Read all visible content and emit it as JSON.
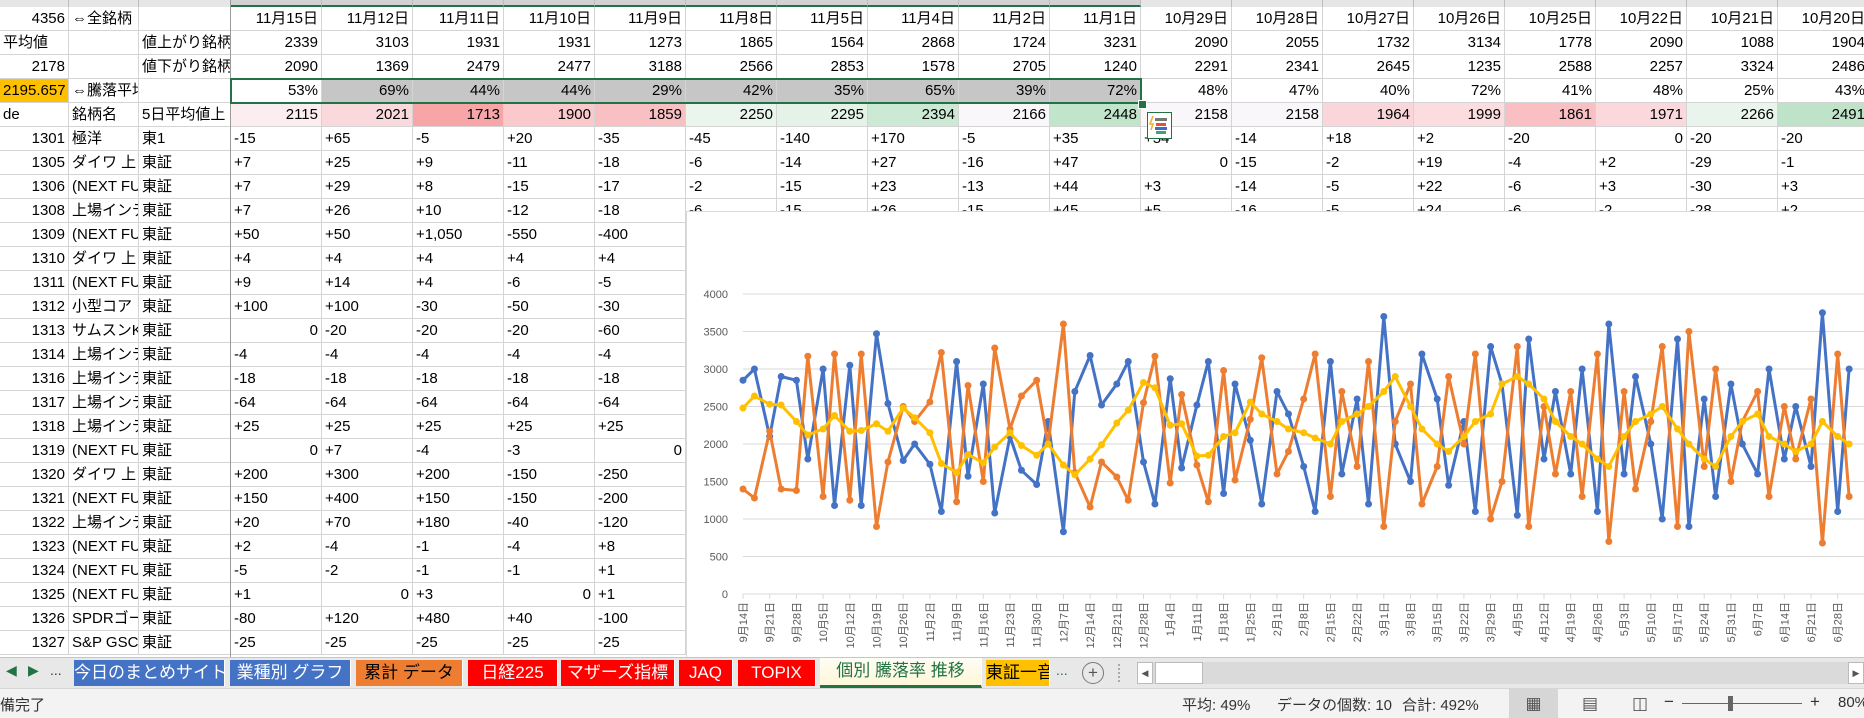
{
  "sheet": {
    "header_rows": [
      {
        "a": "4356",
        "b": "⇔全銘柄",
        "c": "",
        "values": [
          "11月15日",
          "11月12日",
          "11月11日",
          "11月10日",
          "11月9日",
          "11月8日",
          "11月5日",
          "11月4日",
          "11月2日",
          "11月1日",
          "10月29日",
          "10月28日",
          "10月27日",
          "10月26日",
          "10月25日",
          "10月22日",
          "10月21日",
          "10月20日"
        ]
      },
      {
        "a": "平均値",
        "b": "",
        "c": "値上がり銘柄",
        "values": [
          "2339",
          "3103",
          "1931",
          "1931",
          "1273",
          "1865",
          "1564",
          "2868",
          "1724",
          "3231",
          "2090",
          "2055",
          "1732",
          "3134",
          "1778",
          "2090",
          "1088",
          "1904"
        ]
      },
      {
        "a": "2178",
        "b": "",
        "c": "値下がり銘柄",
        "values": [
          "2090",
          "1369",
          "2479",
          "2477",
          "3188",
          "2566",
          "2853",
          "1578",
          "2705",
          "1240",
          "2291",
          "2341",
          "2645",
          "1235",
          "2588",
          "2257",
          "3324",
          "2486"
        ]
      },
      {
        "a": "2195.657",
        "b": "⇔騰落平均",
        "c": "",
        "values": [
          "53%",
          "69%",
          "44%",
          "44%",
          "29%",
          "42%",
          "35%",
          "65%",
          "39%",
          "72%",
          "48%",
          "47%",
          "40%",
          "72%",
          "41%",
          "48%",
          "25%",
          "43%"
        ]
      },
      {
        "a": "de",
        "b": "銘柄名",
        "c": "5日平均値上",
        "values": [
          "2115",
          "2021",
          "1713",
          "1900",
          "1859",
          "2250",
          "2295",
          "2394",
          "2166",
          "2448",
          "2158",
          "2158",
          "1964",
          "1999",
          "1861",
          "1971",
          "2266",
          "2491"
        ]
      }
    ],
    "avg5_colors": [
      "#fcedf0",
      "#fad9dd",
      "#f8a5a8",
      "#fbc8cb",
      "#f9c0c3",
      "#eaf5ee",
      "#e4f2e8",
      "#cbe9d4",
      "#f9f7fa",
      "#c1e5ca",
      "#faf7fa",
      "#faf7fa",
      "#fad6da",
      "#fbdde0",
      "#f9bfc3",
      "#fad8dc",
      "#e9f4ec",
      "#bfe3c8"
    ],
    "highlight_color": "#ffc000",
    "selected_fill": "#c6c6c6",
    "selection_color": "#217346",
    "data_rows": [
      {
        "code": "1301",
        "name": "極洋",
        "market": "東1",
        "values": [
          "-15",
          "+65",
          "-5",
          "+20",
          "-35",
          "-45",
          "-140",
          "+170",
          "-5",
          "+35",
          "+54",
          "-14",
          "+18",
          "+2",
          "-20",
          "0",
          "-20",
          "-20"
        ]
      },
      {
        "code": "1305",
        "name": "ダイワ 上",
        "market": "東証",
        "values": [
          "+7",
          "+25",
          "+9",
          "-11",
          "-18",
          "-6",
          "-14",
          "+27",
          "-16",
          "+47",
          "0",
          "-15",
          "-2",
          "+19",
          "-4",
          "+2",
          "-29",
          "-1"
        ]
      },
      {
        "code": "1306",
        "name": "(NEXT FU",
        "market": "東証",
        "values": [
          "+7",
          "+29",
          "+8",
          "-15",
          "-17",
          "-2",
          "-15",
          "+23",
          "-13",
          "+44",
          "+3",
          "-14",
          "-5",
          "+22",
          "-6",
          "+3",
          "-30",
          "+3"
        ]
      },
      {
        "code": "1308",
        "name": "上場インデ",
        "market": "東証",
        "values": [
          "+7",
          "+26",
          "+10",
          "-12",
          "-18",
          "-6",
          "-15",
          "+26",
          "-15",
          "+45",
          "+5",
          "-16",
          "-5",
          "+24",
          "-6",
          "-2",
          "-28",
          "+2"
        ]
      },
      {
        "code": "1309",
        "name": "(NEXT FU",
        "market": "東証",
        "values": [
          "+50",
          "+50",
          "+1,050",
          "-550",
          "-400"
        ]
      },
      {
        "code": "1310",
        "name": "ダイワ 上",
        "market": "東証",
        "values": [
          "+4",
          "+4",
          "+4",
          "+4",
          "+4"
        ]
      },
      {
        "code": "1311",
        "name": "(NEXT FU",
        "market": "東証",
        "values": [
          "+9",
          "+14",
          "+4",
          "-6",
          "-5"
        ]
      },
      {
        "code": "1312",
        "name": "小型コア・",
        "market": "東証",
        "values": [
          "+100",
          "+100",
          "-30",
          "-50",
          "-30"
        ]
      },
      {
        "code": "1313",
        "name": "サムスンK",
        "market": "東証",
        "values": [
          "0",
          "-20",
          "-20",
          "-20",
          "-60"
        ]
      },
      {
        "code": "1314",
        "name": "上場インデ",
        "market": "東証",
        "values": [
          "-4",
          "-4",
          "-4",
          "-4",
          "-4"
        ]
      },
      {
        "code": "1316",
        "name": "上場インデ",
        "market": "東証",
        "values": [
          "-18",
          "-18",
          "-18",
          "-18",
          "-18"
        ]
      },
      {
        "code": "1317",
        "name": "上場インデ",
        "market": "東証",
        "values": [
          "-64",
          "-64",
          "-64",
          "-64",
          "-64"
        ]
      },
      {
        "code": "1318",
        "name": "上場インデ",
        "market": "東証",
        "values": [
          "+25",
          "+25",
          "+25",
          "+25",
          "+25"
        ]
      },
      {
        "code": "1319",
        "name": "(NEXT FU",
        "market": "東証",
        "values": [
          "0",
          "+7",
          "-4",
          "-3",
          "0"
        ]
      },
      {
        "code": "1320",
        "name": "ダイワ 上",
        "market": "東証",
        "values": [
          "+200",
          "+300",
          "+200",
          "-150",
          "-250"
        ]
      },
      {
        "code": "1321",
        "name": "(NEXT FU",
        "market": "東証",
        "values": [
          "+150",
          "+400",
          "+150",
          "-150",
          "-200"
        ]
      },
      {
        "code": "1322",
        "name": "上場インデ",
        "market": "東証",
        "values": [
          "+20",
          "+70",
          "+180",
          "-40",
          "-120"
        ]
      },
      {
        "code": "1323",
        "name": "(NEXT FU",
        "market": "東証",
        "values": [
          "+2",
          "-4",
          "-1",
          "-4",
          "+8"
        ]
      },
      {
        "code": "1324",
        "name": "(NEXT FU",
        "market": "東証",
        "values": [
          "-5",
          "-2",
          "-1",
          "-1",
          "+1"
        ]
      },
      {
        "code": "1325",
        "name": "(NEXT FU",
        "market": "東証",
        "values": [
          "+1",
          "0",
          "+3",
          "0",
          "+1"
        ]
      },
      {
        "code": "1326",
        "name": "SPDRゴー",
        "market": "東証",
        "values": [
          "-80",
          "+120",
          "+480",
          "+40",
          "-100"
        ]
      },
      {
        "code": "1327",
        "name": "S&P GSCI",
        "market": "東証",
        "values": [
          "-25",
          "-25",
          "-25",
          "-25",
          "-25"
        ]
      }
    ]
  },
  "chart_data": {
    "type": "line",
    "title": "",
    "xlabel": "",
    "ylabel": "",
    "ylim": [
      0,
      4000
    ],
    "yticks": [
      "0",
      "500",
      "1000",
      "1500",
      "2000",
      "2500",
      "3000",
      "3500",
      "4000"
    ],
    "grid": true,
    "legend": "none",
    "xtick_labels": [
      "9月14日",
      "9月21日",
      "9月28日",
      "10月5日",
      "10月12日",
      "10月19日",
      "10月26日",
      "11月2日",
      "11月9日",
      "11月16日",
      "11月23日",
      "11月30日",
      "12月7日",
      "12月14日",
      "12月21日",
      "12月28日",
      "1月4日",
      "1月11日",
      "1月18日",
      "1月25日",
      "2月1日",
      "2月8日",
      "2月15日",
      "2月22日",
      "3月1日",
      "3月8日",
      "3月15日",
      "3月22日",
      "3月29日",
      "4月5日",
      "4月12日",
      "4月19日",
      "4月26日",
      "5月3日",
      "5月10日",
      "5月17日",
      "5月24日",
      "5月31日",
      "6月7日",
      "6月14日",
      "6月21日",
      "6月28日"
    ],
    "x": [
      "09-14",
      "09-17",
      "09-21",
      "09-24",
      "09-28",
      "10-01",
      "10-05",
      "10-08",
      "10-12",
      "10-15",
      "10-19",
      "10-22",
      "10-26",
      "10-29",
      "11-02",
      "11-05",
      "11-09",
      "11-12",
      "11-16",
      "11-19",
      "11-23",
      "11-26",
      "11-30",
      "12-03",
      "12-07",
      "12-10",
      "12-14",
      "12-17",
      "12-21",
      "12-24",
      "12-28",
      "12-31",
      "01-04",
      "01-07",
      "01-11",
      "01-14",
      "01-18",
      "01-21",
      "01-25",
      "01-28",
      "02-01",
      "02-04",
      "02-08",
      "02-11",
      "02-15",
      "02-18",
      "02-22",
      "02-25",
      "03-01",
      "03-04",
      "03-08",
      "03-11",
      "03-15",
      "03-18",
      "03-22",
      "03-25",
      "03-29",
      "04-01",
      "04-05",
      "04-08",
      "04-12",
      "04-15",
      "04-19",
      "04-22",
      "04-26",
      "04-29",
      "05-03",
      "05-06",
      "05-10",
      "05-13",
      "05-17",
      "05-20",
      "05-24",
      "05-27",
      "05-31",
      "06-03",
      "06-07",
      "06-10",
      "06-14",
      "06-17",
      "06-21",
      "06-24",
      "06-28",
      "07-01"
    ],
    "series": [
      {
        "color": "#4472c4",
        "values": [
          2850,
          3000,
          2100,
          2900,
          2850,
          1800,
          3000,
          1180,
          3050,
          1180,
          3470,
          2540,
          1780,
          2000,
          1730,
          1100,
          3100,
          1570,
          2800,
          1080,
          2100,
          1650,
          1460,
          2300,
          830,
          2700,
          3180,
          2520,
          2800,
          3100,
          1760,
          1200,
          2870,
          1680,
          2520,
          3100,
          1340,
          2800,
          2050,
          1200,
          2700,
          2400,
          1700,
          1100,
          3100,
          1600,
          2600,
          1200,
          3700,
          2000,
          1500,
          3200,
          2600,
          1450,
          2300,
          1100,
          3300,
          2800,
          1050,
          3400,
          1800,
          2700,
          1600,
          3000,
          1100,
          3600,
          1600,
          2900,
          2000,
          1000,
          3400,
          900,
          2600,
          1300,
          2800,
          2000,
          1600,
          3000,
          1800,
          2500,
          1700,
          3750,
          1100,
          3000
        ]
      },
      {
        "color": "#ed7d31",
        "values": [
          1400,
          1280,
          2170,
          1400,
          1380,
          3170,
          1300,
          3200,
          1250,
          3200,
          900,
          1760,
          2500,
          2300,
          2560,
          3220,
          1230,
          2780,
          1500,
          3280,
          2200,
          2640,
          2850,
          2000,
          3600,
          1620,
          1160,
          1760,
          1560,
          1250,
          2550,
          3170,
          1480,
          2660,
          1720,
          1230,
          2980,
          1520,
          2330,
          3150,
          1600,
          1900,
          2600,
          3200,
          1300,
          2700,
          1700,
          3100,
          900,
          2300,
          2800,
          1200,
          1700,
          2900,
          2000,
          3200,
          1000,
          1500,
          3300,
          900,
          2500,
          1600,
          2700,
          1300,
          3200,
          700,
          2700,
          1400,
          2300,
          3300,
          900,
          3500,
          1700,
          3000,
          1500,
          2300,
          2700,
          1300,
          2500,
          1800,
          2600,
          680,
          3200,
          1300
        ]
      },
      {
        "color": "#ffc000",
        "values": [
          2480,
          2640,
          2530,
          2520,
          2300,
          2120,
          2200,
          2380,
          2170,
          2180,
          2270,
          2170,
          2480,
          2350,
          2150,
          1740,
          1620,
          1860,
          1750,
          1960,
          2150,
          1980,
          1850,
          2000,
          1720,
          1590,
          1800,
          1990,
          2280,
          2450,
          2820,
          2750,
          2250,
          2270,
          1840,
          1850,
          2100,
          2150,
          2560,
          2400,
          2300,
          2200,
          2150,
          2080,
          2000,
          2300,
          2400,
          2500,
          2700,
          2900,
          2500,
          2200,
          2000,
          1900,
          2100,
          2300,
          2400,
          2800,
          2900,
          2800,
          2600,
          2300,
          2100,
          2000,
          1800,
          1700,
          2100,
          2300,
          2400,
          2500,
          2200,
          2000,
          1800,
          1700,
          2100,
          2300,
          2400,
          2100,
          2000,
          1900,
          2000,
          2300,
          2100,
          2000
        ]
      }
    ]
  },
  "tabs": {
    "items": [
      {
        "label": "今日のまとめサイト",
        "bg": "#4472c4",
        "fg": "#ffffff"
      },
      {
        "label": "業種別 グラフ",
        "bg": "#4472c4",
        "fg": "#ffffff"
      },
      {
        "label": "累計 データ",
        "bg": "#ed7d31",
        "fg": "#000000"
      },
      {
        "label": "日経225",
        "bg": "#ff0000",
        "fg": "#ffffff"
      },
      {
        "label": "マザーズ指標",
        "bg": "#ff0000",
        "fg": "#ffffff"
      },
      {
        "label": "JAQ",
        "bg": "#ff0000",
        "fg": "#ffffff"
      },
      {
        "label": "TOPIX",
        "bg": "#ff0000",
        "fg": "#ffffff"
      },
      {
        "label": "個別 騰落率 推移",
        "bg": "#fdf6d8",
        "fg": "#217346",
        "active": true
      },
      {
        "label": "東証一音",
        "bg": "#ffc000",
        "fg": "#000000"
      }
    ],
    "more": "...",
    "more_right": "...",
    "add": "+"
  },
  "status": {
    "ready": "備完了",
    "average": "平均: 49%",
    "count": "データの個数: 10",
    "sum": "合計: 492%",
    "zoom": "80%",
    "zoom_level_percent": 80
  }
}
